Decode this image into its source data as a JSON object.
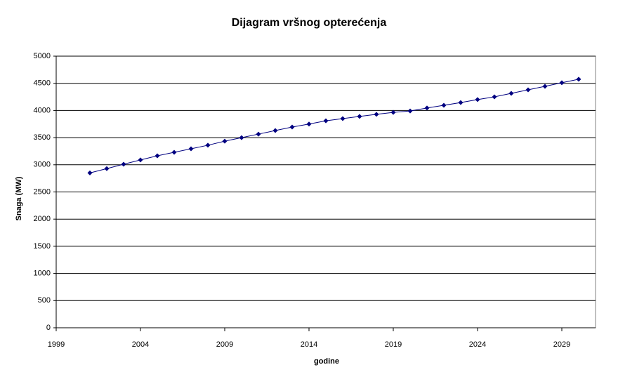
{
  "chart_data": {
    "type": "line",
    "title": "Dijagram vršnog opterećenja",
    "x_label": "godine",
    "y_label": "Snaga (MW)",
    "x": [
      2001,
      2002,
      2003,
      2004,
      2005,
      2006,
      2007,
      2008,
      2009,
      2010,
      2011,
      2012,
      2013,
      2014,
      2015,
      2016,
      2017,
      2018,
      2019,
      2020,
      2021,
      2022,
      2023,
      2024,
      2025,
      2026,
      2027,
      2028,
      2029,
      2030
    ],
    "values": [
      2850,
      2930,
      3010,
      3090,
      3165,
      3230,
      3295,
      3360,
      3435,
      3500,
      3565,
      3630,
      3695,
      3750,
      3810,
      3850,
      3890,
      3930,
      3965,
      3990,
      4045,
      4095,
      4145,
      4200,
      4250,
      4315,
      4380,
      4445,
      4510,
      4575
    ],
    "color": "#000080",
    "xlim": [
      1999,
      2031
    ],
    "xticks": [
      1999,
      2004,
      2009,
      2014,
      2019,
      2024,
      2029
    ],
    "ylim": [
      0,
      5000
    ],
    "yticks": [
      0,
      500,
      1000,
      1500,
      2000,
      2500,
      3000,
      3500,
      4000,
      4500,
      5000
    ],
    "grid": true
  }
}
